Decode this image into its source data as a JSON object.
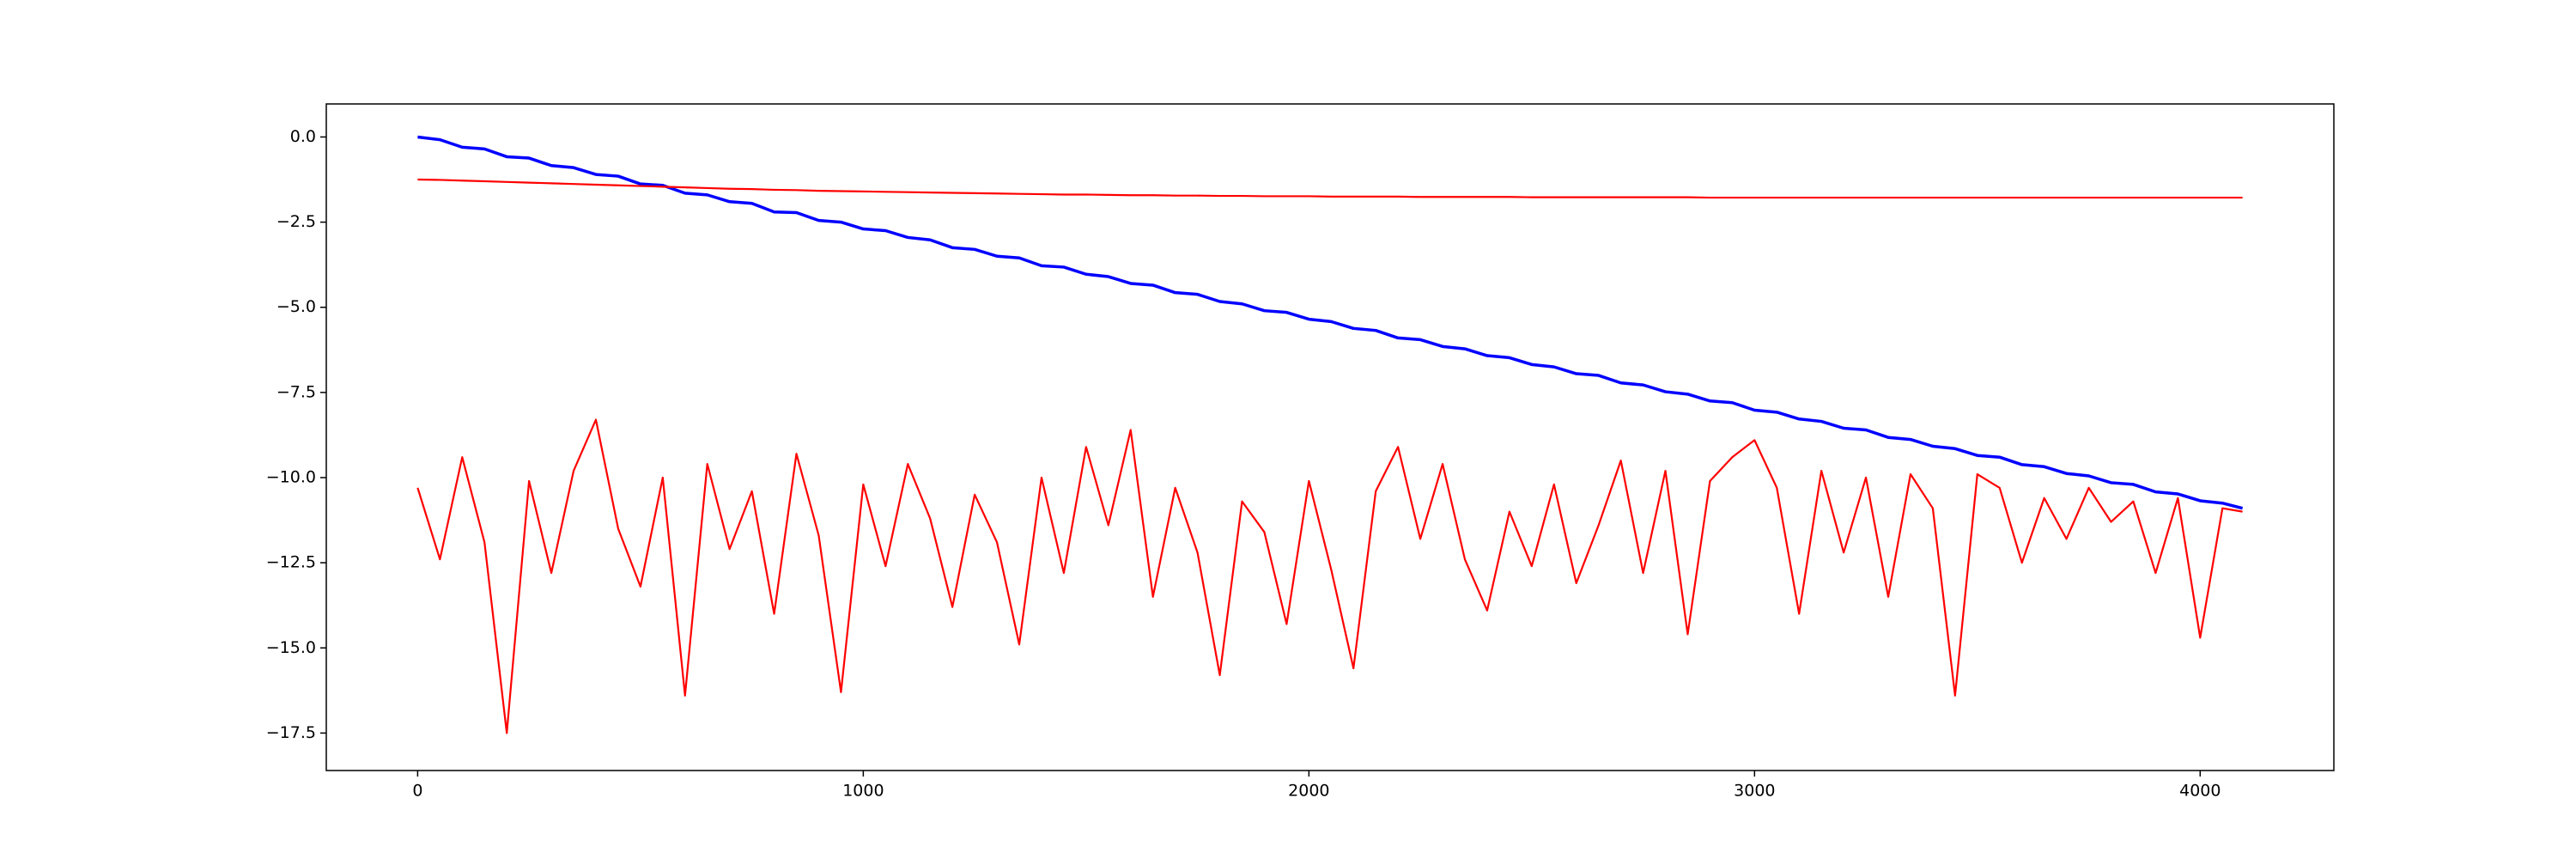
{
  "chart_data": {
    "type": "line",
    "x": [
      0,
      50,
      100,
      150,
      200,
      250,
      300,
      350,
      400,
      450,
      500,
      550,
      600,
      650,
      700,
      750,
      800,
      850,
      900,
      950,
      1000,
      1050,
      1100,
      1150,
      1200,
      1250,
      1300,
      1350,
      1400,
      1450,
      1500,
      1550,
      1600,
      1650,
      1700,
      1750,
      1800,
      1850,
      1900,
      1950,
      2000,
      2050,
      2100,
      2150,
      2200,
      2250,
      2300,
      2350,
      2400,
      2450,
      2500,
      2550,
      2600,
      2650,
      2700,
      2750,
      2800,
      2850,
      2900,
      2950,
      3000,
      3050,
      3100,
      3150,
      3200,
      3250,
      3300,
      3350,
      3400,
      3450,
      3500,
      3550,
      3600,
      3650,
      3700,
      3750,
      3800,
      3850,
      3900,
      3950,
      4000,
      4050,
      4095
    ],
    "series": [
      {
        "color": "#0000ff",
        "values": [
          0.0,
          -0.08,
          -0.3,
          -0.35,
          -0.58,
          -0.62,
          -0.84,
          -0.9,
          -1.1,
          -1.15,
          -1.38,
          -1.42,
          -1.65,
          -1.7,
          -1.9,
          -1.95,
          -2.2,
          -2.22,
          -2.45,
          -2.5,
          -2.7,
          -2.75,
          -2.95,
          -3.02,
          -3.25,
          -3.3,
          -3.5,
          -3.55,
          -3.78,
          -3.82,
          -4.03,
          -4.1,
          -4.3,
          -4.35,
          -4.57,
          -4.62,
          -4.83,
          -4.9,
          -5.1,
          -5.15,
          -5.35,
          -5.42,
          -5.62,
          -5.68,
          -5.9,
          -5.95,
          -6.15,
          -6.22,
          -6.42,
          -6.48,
          -6.68,
          -6.75,
          -6.95,
          -7.0,
          -7.22,
          -7.28,
          -7.48,
          -7.55,
          -7.75,
          -7.8,
          -8.02,
          -8.08,
          -8.28,
          -8.35,
          -8.55,
          -8.6,
          -8.82,
          -8.88,
          -9.08,
          -9.15,
          -9.35,
          -9.4,
          -9.62,
          -9.68,
          -9.88,
          -9.95,
          -10.15,
          -10.2,
          -10.42,
          -10.48,
          -10.68,
          -10.75,
          -10.9
        ]
      },
      {
        "color": "#ff0000",
        "values": [
          -1.25,
          -1.26,
          -1.28,
          -1.3,
          -1.32,
          -1.34,
          -1.36,
          -1.38,
          -1.4,
          -1.42,
          -1.44,
          -1.46,
          -1.48,
          -1.5,
          -1.52,
          -1.53,
          -1.55,
          -1.56,
          -1.58,
          -1.59,
          -1.6,
          -1.61,
          -1.62,
          -1.63,
          -1.64,
          -1.65,
          -1.66,
          -1.67,
          -1.68,
          -1.69,
          -1.69,
          -1.7,
          -1.71,
          -1.71,
          -1.72,
          -1.72,
          -1.73,
          -1.73,
          -1.74,
          -1.74,
          -1.74,
          -1.75,
          -1.75,
          -1.75,
          -1.75,
          -1.76,
          -1.76,
          -1.76,
          -1.76,
          -1.76,
          -1.77,
          -1.77,
          -1.77,
          -1.77,
          -1.77,
          -1.77,
          -1.77,
          -1.77,
          -1.78,
          -1.78,
          -1.78,
          -1.78,
          -1.78,
          -1.78,
          -1.78,
          -1.78,
          -1.78,
          -1.78,
          -1.78,
          -1.78,
          -1.78,
          -1.78,
          -1.78,
          -1.78,
          -1.78,
          -1.78,
          -1.78,
          -1.78,
          -1.78,
          -1.78,
          -1.78,
          -1.78,
          -1.78
        ]
      },
      {
        "color": "#ff0000",
        "values": [
          -10.3,
          -12.4,
          -9.4,
          -11.9,
          -17.5,
          -10.1,
          -12.8,
          -9.8,
          -8.3,
          -11.5,
          -13.2,
          -10.0,
          -16.4,
          -9.6,
          -12.1,
          -10.4,
          -14.0,
          -9.3,
          -11.7,
          -16.3,
          -10.2,
          -12.6,
          -9.6,
          -11.2,
          -13.8,
          -10.5,
          -11.9,
          -14.9,
          -10.0,
          -12.8,
          -9.1,
          -11.4,
          -8.6,
          -13.5,
          -10.3,
          -12.2,
          -15.8,
          -10.7,
          -11.6,
          -14.3,
          -10.1,
          -12.7,
          -15.6,
          -10.4,
          -9.1,
          -11.8,
          -9.6,
          -12.4,
          -13.9,
          -11.0,
          -12.6,
          -10.2,
          -13.1,
          -11.4,
          -9.5,
          -12.8,
          -9.8,
          -14.6,
          -10.1,
          -9.4,
          -8.9,
          -10.3,
          -14.0,
          -9.8,
          -12.2,
          -10.0,
          -13.5,
          -9.9,
          -10.9,
          -16.4,
          -9.9,
          -10.3,
          -12.5,
          -10.6,
          -11.8,
          -10.3,
          -11.3,
          -10.7,
          -12.8,
          -10.6,
          -14.7,
          -10.9,
          -11.0
        ]
      }
    ],
    "xlim": [
      -205,
      4300
    ],
    "ylim": [
      -18.6,
      0.97
    ],
    "xticks": [
      0,
      1000,
      2000,
      3000,
      4000
    ],
    "yticks": [
      {
        "value": 0,
        "label": "0.0"
      },
      {
        "value": -2.5,
        "label": "−2.5"
      },
      {
        "value": -5,
        "label": "−5.0"
      },
      {
        "value": -7.5,
        "label": "−7.5"
      },
      {
        "value": -10,
        "label": "−10.0"
      },
      {
        "value": -12.5,
        "label": "−12.5"
      },
      {
        "value": -15,
        "label": "−15.0"
      },
      {
        "value": -17.5,
        "label": "−17.5"
      }
    ]
  }
}
